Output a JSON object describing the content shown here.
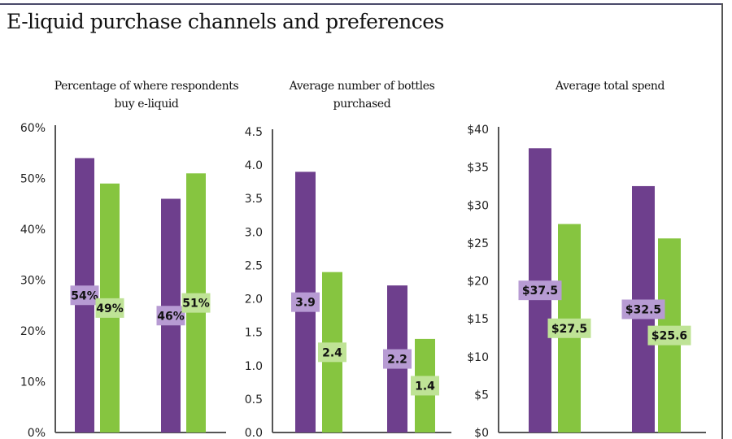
{
  "title": "E-liquid purchase channels and preferences",
  "colors": {
    "series1": "#6e3f8d",
    "series2": "#86c540",
    "label1": "#b79bd3",
    "label2": "#bfe396"
  },
  "chart_data": [
    {
      "type": "bar",
      "title": "Percentage of where respondents buy e-liquid",
      "categories": [
        "",
        ""
      ],
      "series": [
        {
          "name": "series1",
          "values": [
            54,
            46
          ]
        },
        {
          "name": "series2",
          "values": [
            49,
            51
          ]
        }
      ],
      "data_labels": [
        [
          "54%",
          "46%"
        ],
        [
          "49%",
          "51%"
        ]
      ],
      "ylim": [
        0,
        60
      ],
      "yticks": [
        "0%",
        "10%",
        "20%",
        "30%",
        "40%",
        "50%",
        "60%"
      ],
      "ytick_values": [
        0,
        10,
        20,
        30,
        40,
        50,
        60
      ]
    },
    {
      "type": "bar",
      "title": "Average number of bottles purchased",
      "categories": [
        "",
        ""
      ],
      "series": [
        {
          "name": "series1",
          "values": [
            3.9,
            2.2
          ]
        },
        {
          "name": "series2",
          "values": [
            2.4,
            1.4
          ]
        }
      ],
      "data_labels": [
        [
          "3.9",
          "2.2"
        ],
        [
          "2.4",
          "1.4"
        ]
      ],
      "ylim": [
        0,
        4.5
      ],
      "yticks": [
        "0.0",
        "0.5",
        "1.0",
        "1.5",
        "2.0",
        "2.5",
        "3.0",
        "3.5",
        "4.0",
        "4.5"
      ],
      "ytick_values": [
        0,
        0.5,
        1,
        1.5,
        2,
        2.5,
        3,
        3.5,
        4,
        4.5
      ]
    },
    {
      "type": "bar",
      "title": "Average total spend",
      "categories": [
        "",
        ""
      ],
      "series": [
        {
          "name": "series1",
          "values": [
            37.5,
            32.5
          ]
        },
        {
          "name": "series2",
          "values": [
            27.5,
            25.6
          ]
        }
      ],
      "data_labels": [
        [
          "$37.5",
          "$32.5"
        ],
        [
          "$27.5",
          "$25.6"
        ]
      ],
      "ylim": [
        0,
        40
      ],
      "yticks": [
        "$0",
        "$5",
        "$10",
        "$15",
        "$20",
        "$25",
        "$30",
        "$35",
        "$40"
      ],
      "ytick_values": [
        0,
        5,
        10,
        15,
        20,
        25,
        30,
        35,
        40
      ]
    }
  ]
}
